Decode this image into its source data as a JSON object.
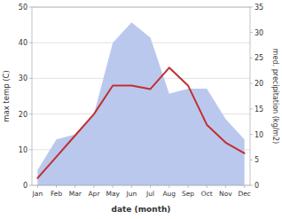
{
  "chart_data": {
    "type": "line",
    "xlabel": "date (month)",
    "ylabel": "max temp (C)",
    "y2label": "med. precipitation (kg/m2)",
    "categories": [
      "Jan",
      "Feb",
      "Mar",
      "Apr",
      "May",
      "Jun",
      "Jul",
      "Aug",
      "Sep",
      "Oct",
      "Nov",
      "Dec"
    ],
    "series": [
      {
        "type": "area",
        "axis": "y2",
        "color": "#bbc8ee",
        "values": [
          3,
          9,
          10,
          14,
          28,
          32,
          29,
          18,
          19,
          19,
          13,
          9
        ]
      },
      {
        "type": "line",
        "color": "#c03030",
        "values": [
          2,
          8,
          14,
          20,
          28,
          28,
          27,
          33,
          28,
          17,
          12,
          9
        ]
      }
    ],
    "ylim": [
      0,
      50
    ],
    "yticks": [
      0,
      10,
      20,
      30,
      40,
      50
    ],
    "y2lim": [
      0,
      35
    ],
    "y2ticks": [
      0,
      5,
      10,
      15,
      20,
      25,
      30,
      35
    ],
    "grid": true
  }
}
